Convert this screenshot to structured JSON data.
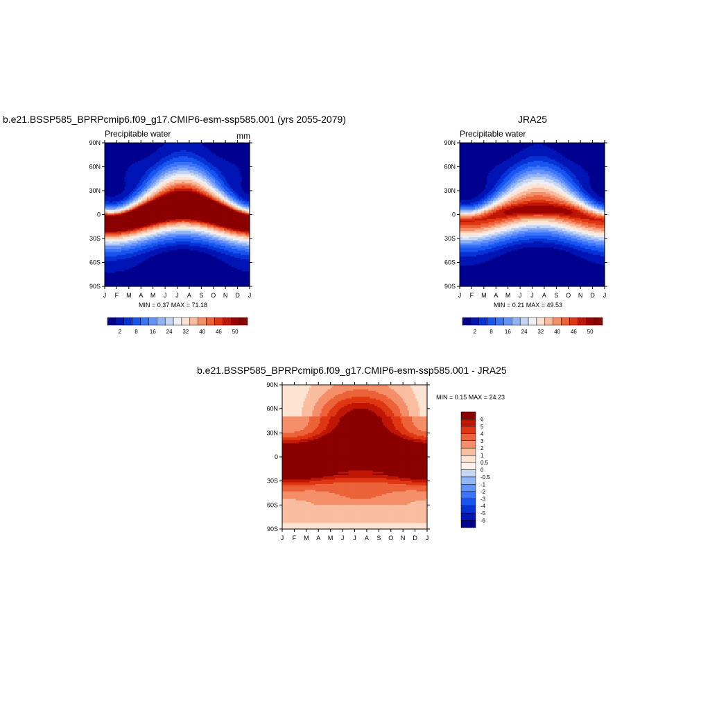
{
  "palette": [
    "#00008f",
    "#0015b5",
    "#0633d6",
    "#1855f0",
    "#3b74fa",
    "#6492fc",
    "#94b4f8",
    "#c4d6f2",
    "#eeeef5",
    "#fde3d2",
    "#f9bd9f",
    "#f48f69",
    "#ec6239",
    "#df3613",
    "#c01605",
    "#9a0301",
    "#8b0000"
  ],
  "diff_palette": [
    "#00008f",
    "#0015b5",
    "#0633d6",
    "#1855f0",
    "#3b74fa",
    "#6492fc",
    "#94b4f8",
    "#c4d6f2",
    "#fbf3ec",
    "#fde3d2",
    "#f9bd9f",
    "#f48f69",
    "#ec6239",
    "#df3613",
    "#c01605",
    "#8b0000"
  ],
  "chart_data": [
    {
      "type": "heatmap",
      "title": "b.e21.BSSP585_BPRPcmip6.f09_g17.CMIP6-esm-ssp585.001 (yrs 2055-2079)",
      "subtitle_left": "Precipitable water",
      "subtitle_right": "mm",
      "x_ticks": [
        "J",
        "F",
        "M",
        "A",
        "M",
        "J",
        "J",
        "A",
        "S",
        "O",
        "N",
        "D",
        "J"
      ],
      "y_ticks": [
        "90N",
        "60N",
        "30N",
        "0",
        "30S",
        "60S",
        "90S"
      ],
      "stats": "MIN =   0.37 MAX =  71.18",
      "min": 0.37,
      "max": 71.18,
      "colorbar_labels": [
        "2",
        "8",
        "16",
        "24",
        "32",
        "40",
        "46",
        "50"
      ],
      "field": {
        "eq_peak": 62,
        "pole_min": 1.5,
        "itcz_amp": 8,
        "nh_season_amp": 9,
        "sh_season_amp": 5,
        "width": 28
      }
    },
    {
      "type": "heatmap",
      "title": "JRA25",
      "subtitle_left": "Precipitable water",
      "subtitle_right": "",
      "x_ticks": [
        "J",
        "F",
        "M",
        "A",
        "M",
        "J",
        "J",
        "A",
        "S",
        "O",
        "N",
        "D",
        "J"
      ],
      "y_ticks": [
        "90N",
        "60N",
        "30N",
        "0",
        "30S",
        "60S",
        "90S"
      ],
      "stats": "MIN =   0.21 MAX =  49.53",
      "min": 0.21,
      "max": 49.53,
      "colorbar_labels": [
        "2",
        "8",
        "16",
        "24",
        "32",
        "40",
        "46",
        "50"
      ],
      "field": {
        "eq_peak": 48,
        "pole_min": 1.0,
        "itcz_amp": 8,
        "nh_season_amp": 8,
        "sh_season_amp": 4,
        "width": 27
      }
    },
    {
      "type": "heatmap",
      "title": "b.e21.BSSP585_BPRPcmip6.f09_g17.CMIP6-esm-ssp585.001 - JRA25",
      "x_ticks": [
        "J",
        "F",
        "M",
        "A",
        "M",
        "J",
        "J",
        "A",
        "S",
        "O",
        "N",
        "D",
        "J"
      ],
      "y_ticks": [
        "90N",
        "60N",
        "30N",
        "0",
        "30S",
        "60S",
        "90S"
      ],
      "stats": "MIN =   0.15 MAX =  24.23",
      "min": 0.15,
      "max": 24.23,
      "colorbar_labels": [
        "6",
        "5",
        "4",
        "3",
        "2",
        "1",
        "0.5",
        "0",
        "-0.5",
        "-1",
        "-2",
        "-3",
        "-4",
        "-5",
        "-6"
      ],
      "levels": [
        -6,
        -5,
        -4,
        -3,
        -2,
        -1,
        -0.5,
        0,
        0.5,
        1,
        2,
        3,
        4,
        5,
        6
      ]
    }
  ]
}
